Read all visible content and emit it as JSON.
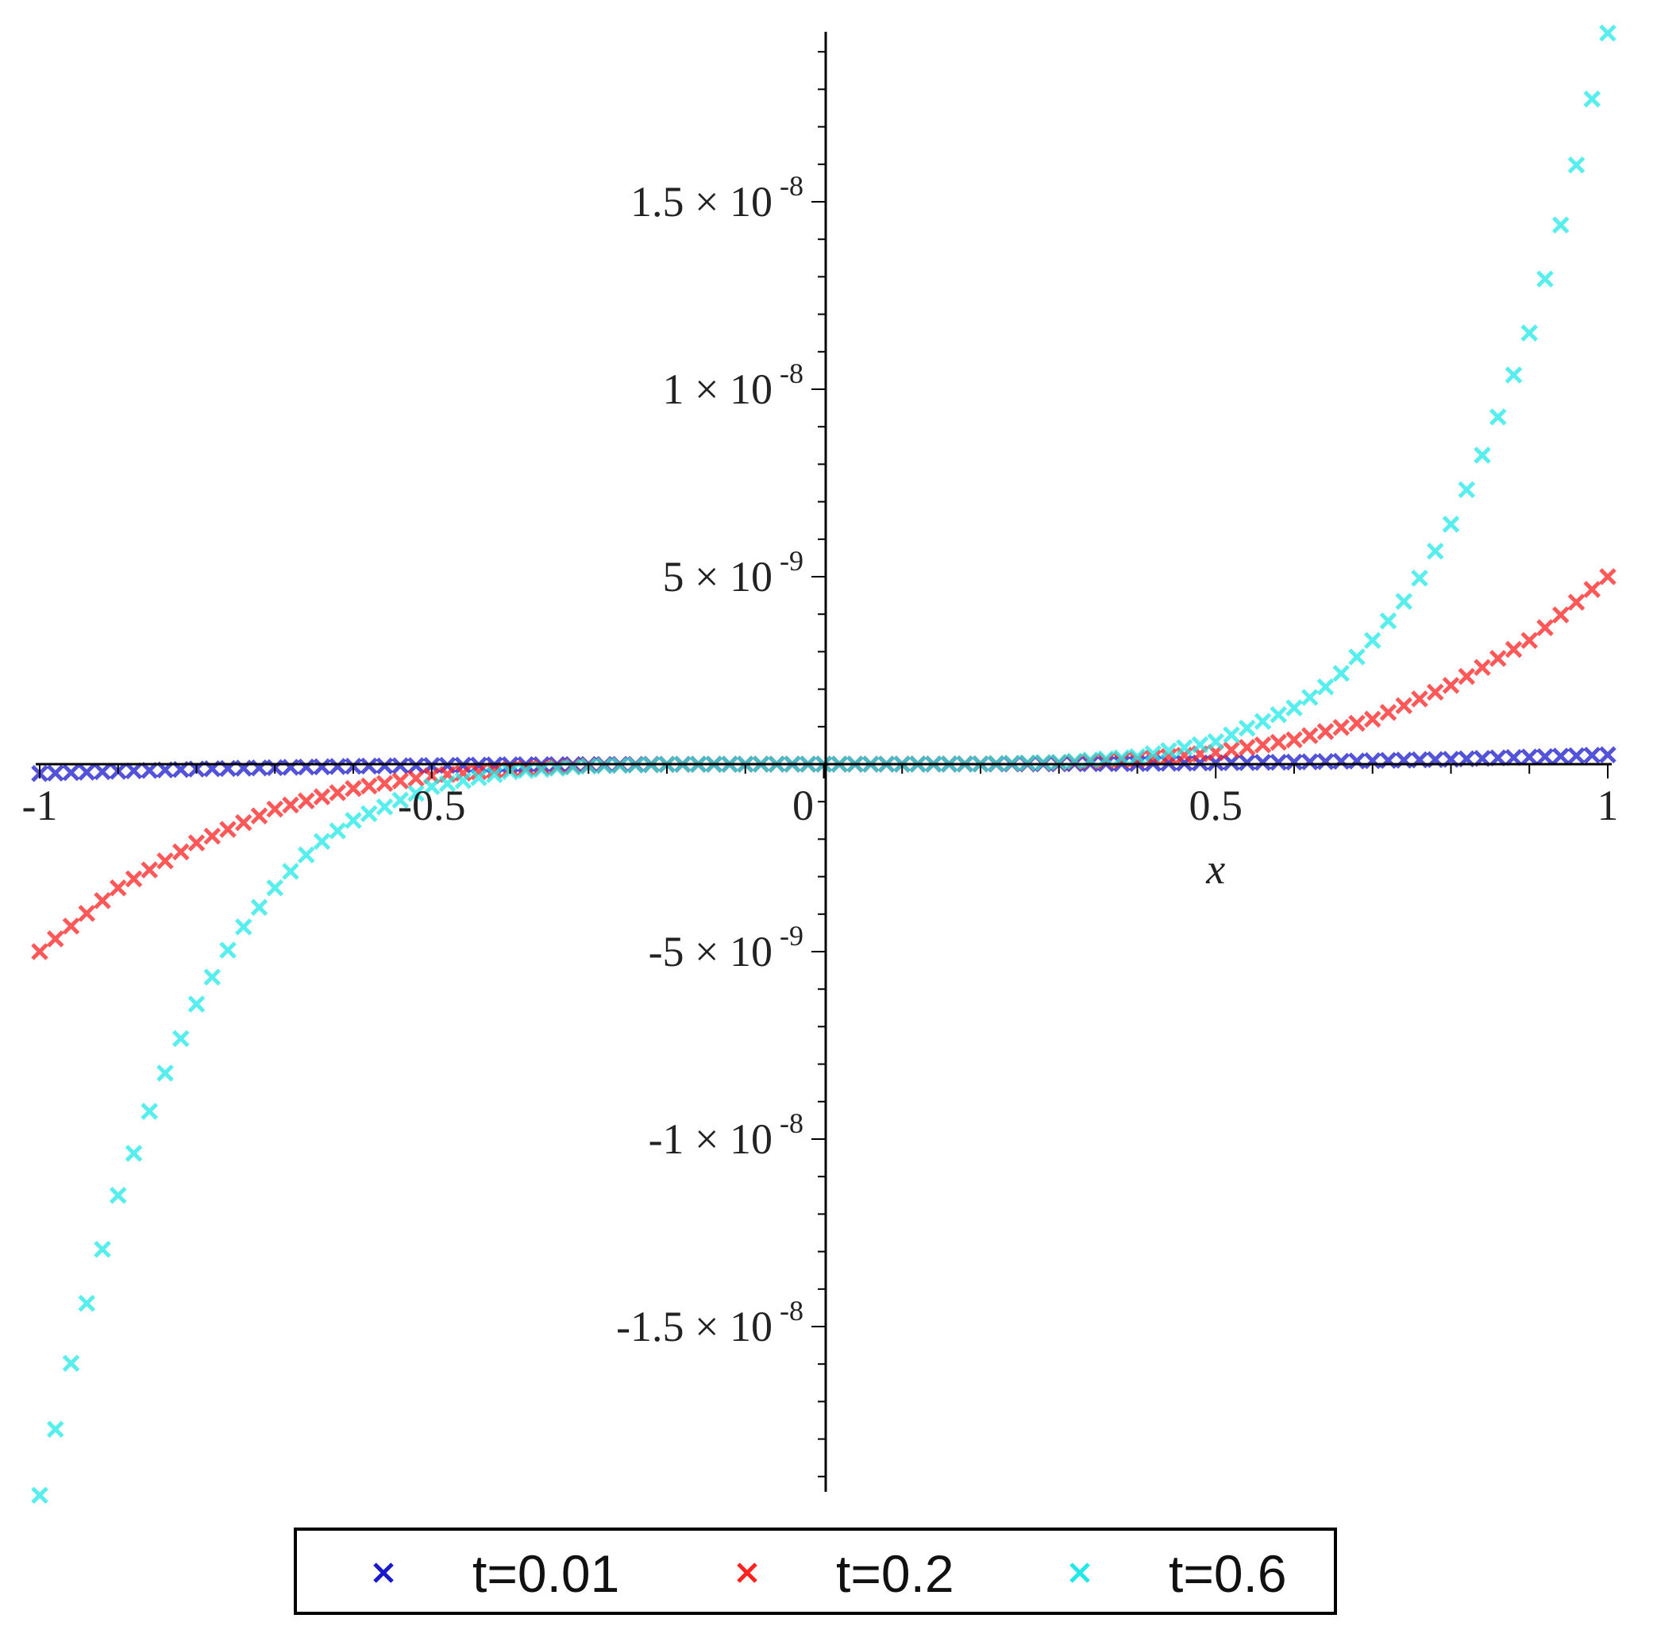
{
  "chart_data": {
    "type": "scatter",
    "xlabel": "x",
    "ylabel": "",
    "xlim": [
      -1,
      1
    ],
    "ylim": [
      -1.9e-08,
      1.9e-08
    ],
    "grid": false,
    "legend_position": "bottom",
    "marker": "×",
    "x_ticks": [
      {
        "value": -1,
        "label": "-1"
      },
      {
        "value": -0.5,
        "label": "-0.5"
      },
      {
        "value": 0,
        "label": "0"
      },
      {
        "value": 0.5,
        "label": "0.5"
      },
      {
        "value": 1,
        "label": "1"
      }
    ],
    "y_ticks": [
      {
        "value": 1.5e-08,
        "mantissa": "1.5",
        "exponent": "-8"
      },
      {
        "value": 1e-08,
        "mantissa": "1",
        "exponent": "-8"
      },
      {
        "value": 5e-09,
        "mantissa": "5",
        "exponent": "-9"
      },
      {
        "value": -5e-09,
        "mantissa": "-5",
        "exponent": "-9"
      },
      {
        "value": -1e-08,
        "mantissa": "-1",
        "exponent": "-8"
      },
      {
        "value": -1.5e-08,
        "mantissa": "-1.5",
        "exponent": "-8"
      }
    ],
    "series": [
      {
        "name": "t=0.01",
        "color": "#1a1acc",
        "x": [
          -1,
          -0.8,
          -0.6,
          -0.4,
          -0.2,
          0,
          0.2,
          0.4,
          0.6,
          0.8,
          1
        ],
        "y": [
          -2.5e-10,
          -1.3e-10,
          -5.5e-11,
          -1.6e-11,
          -2e-12,
          0,
          2e-12,
          1.6e-11,
          5.5e-11,
          1.3e-10,
          2.5e-10
        ]
      },
      {
        "name": "t=0.2",
        "color": "#ff2020",
        "x": [
          -1,
          -0.9,
          -0.8,
          -0.7,
          -0.6,
          -0.5,
          -0.4,
          -0.3,
          -0.2,
          -0.1,
          0,
          0.1,
          0.2,
          0.3,
          0.4,
          0.5,
          0.6,
          0.7,
          0.8,
          0.9,
          1
        ],
        "y": [
          -5e-09,
          -3.3e-09,
          -2.1e-09,
          -1.2e-09,
          -6.5e-10,
          -3.1e-10,
          -1.3e-10,
          -4e-11,
          -8e-12,
          -5e-13,
          0,
          5e-13,
          8e-12,
          4e-11,
          1.3e-10,
          3.1e-10,
          6.5e-10,
          1.2e-09,
          2.1e-09,
          3.3e-09,
          5e-09
        ]
      },
      {
        "name": "t=0.6",
        "color": "#22e8e8",
        "x": [
          -1,
          -0.95,
          -0.9,
          -0.85,
          -0.8,
          -0.75,
          -0.7,
          -0.65,
          -0.6,
          -0.5,
          -0.4,
          -0.3,
          -0.2,
          -0.1,
          0,
          0.1,
          0.2,
          0.3,
          0.4,
          0.5,
          0.6,
          0.65,
          0.7,
          0.75,
          0.8,
          0.85,
          0.9,
          0.95,
          1
        ],
        "y": [
          -1.95e-08,
          -1.51e-08,
          -1.15e-08,
          -8.7e-09,
          -6.4e-09,
          -4.6e-09,
          -3.3e-09,
          -2.2e-09,
          -1.5e-09,
          -6e-10,
          -2e-10,
          -5e-11,
          -6e-12,
          -2e-13,
          0,
          2e-13,
          6e-12,
          5e-11,
          2e-10,
          6e-10,
          1.5e-09,
          2.2e-09,
          3.3e-09,
          4.6e-09,
          6.4e-09,
          8.7e-09,
          1.15e-08,
          1.51e-08,
          1.95e-08
        ]
      }
    ]
  }
}
